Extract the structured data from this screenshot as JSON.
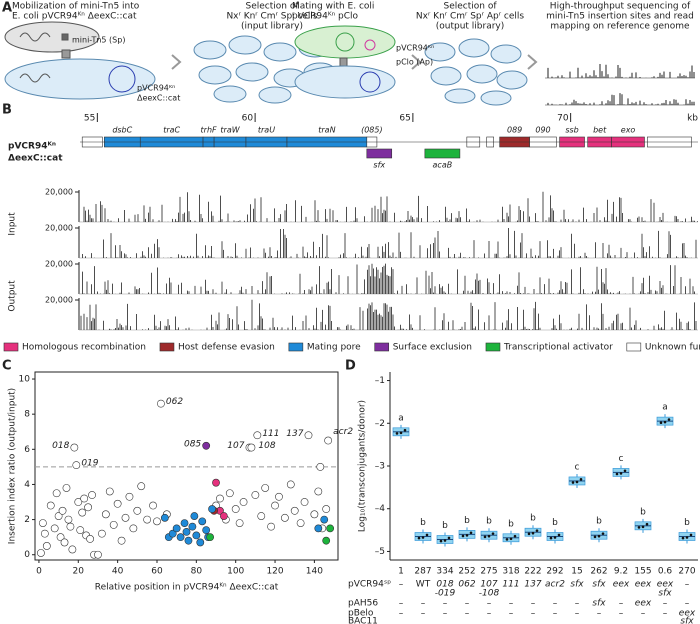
{
  "panel_a": {
    "label": "A",
    "steps": [
      [
        "Mobilization of mini-Tn5 into",
        "E. coli pVCR94ᴷⁿ ΔeexC::cat"
      ],
      [
        "Selection of",
        "Nxʳ Knʳ Cmʳ Spʳ cells",
        "(input library)"
      ],
      [
        "Mating with E. coli",
        "pVCR94ᴷⁿ pClo"
      ],
      [
        "Selection of",
        "Nxʳ Knʳ Cmʳ Spʳ Apʳ cells",
        "(output library)"
      ],
      [
        "High-throughput sequencing of",
        "mini-Tn5 insertion sites and read",
        "mapping on reference genome"
      ]
    ],
    "cell_labels": [
      "mini-Tn5 (Sp)",
      "pVCR94ᴷⁿ",
      "ΔeexC::cat",
      "pVCR94ᴷⁿ",
      "pClo (Ap)"
    ]
  },
  "panel_b": {
    "label": "B",
    "construct": [
      "pVCR94ᴷⁿ",
      "ΔeexC::cat"
    ],
    "kblim": [
      54.45,
      74.1
    ],
    "kb_ticks": [
      55,
      60,
      65,
      70
    ],
    "kb_unit": "kb",
    "genes": [
      {
        "name": null,
        "start": 54.52,
        "end": 55.16,
        "category": "Unknown function"
      },
      {
        "name": "dsbC",
        "start": 55.22,
        "end": 56.36,
        "category": "Mating pore"
      },
      {
        "name": "traC",
        "start": 56.36,
        "end": 58.35,
        "category": "Mating pore"
      },
      {
        "name": "trhF",
        "start": 58.35,
        "end": 58.7,
        "category": "Mating pore"
      },
      {
        "name": "traW",
        "start": 58.7,
        "end": 59.71,
        "category": "Mating pore"
      },
      {
        "name": "traU",
        "start": 59.71,
        "end": 61.01,
        "category": "Mating pore"
      },
      {
        "name": "traN",
        "start": 61.01,
        "end": 63.54,
        "category": "Mating pore"
      },
      {
        "name": "(085)",
        "start": 63.54,
        "end": 63.86,
        "category": "Unknown function"
      },
      {
        "name": "sfx",
        "start": 63.54,
        "end": 64.33,
        "category": "Surface exclusion"
      },
      {
        "name": "acaB",
        "start": 65.38,
        "end": 66.49,
        "category": "Transcriptional activator"
      },
      {
        "name": null,
        "start": 66.71,
        "end": 67.12,
        "category": "Unknown function"
      },
      {
        "name": null,
        "start": 67.34,
        "end": 67.56,
        "category": "Unknown function"
      },
      {
        "name": "089",
        "start": 67.75,
        "end": 68.7,
        "category": "Host defense evasion"
      },
      {
        "name": "090",
        "start": 68.7,
        "end": 69.55,
        "category": "Unknown function"
      },
      {
        "name": "ssb",
        "start": 69.65,
        "end": 70.44,
        "category": "Homologous recombination"
      },
      {
        "name": "bet",
        "start": 70.54,
        "end": 71.3,
        "category": "Homologous recombination"
      },
      {
        "name": "exo",
        "start": 71.3,
        "end": 72.34,
        "category": "Homologous recombination"
      },
      {
        "name": null,
        "start": 72.43,
        "end": 73.83,
        "category": "Unknown function"
      }
    ],
    "track_groups": [
      "Input",
      "Output"
    ],
    "track_tick": {
      "value": 20000,
      "label": "20,000"
    }
  },
  "chart_data": [
    {
      "type": "scatter",
      "label": "C",
      "xlabel": "Relative position in pVCR94ᴷⁿ ΔeexC::cat",
      "ylabel": "Insertion index ratio (output/input)",
      "xlim": [
        -2,
        152
      ],
      "ylim": [
        -0.3,
        10.4
      ],
      "xticks": [
        0,
        20,
        40,
        60,
        80,
        100,
        120,
        140
      ],
      "yticks": [
        0,
        2,
        4,
        6,
        8,
        10
      ],
      "threshold": 5,
      "series": [
        {
          "name": "Homologous recombination",
          "color": "#e5317d",
          "x": [
            90,
            92,
            94
          ],
          "values": [
            4.1,
            2.5,
            2.2
          ]
        },
        {
          "name": "Host defense evasion",
          "color": "#9e2a2b",
          "x": [
            89
          ],
          "values": [
            2.5
          ]
        },
        {
          "name": "Mating pore",
          "color": "#1f8ad8",
          "x": [
            64,
            66,
            68,
            70,
            72,
            74,
            75,
            76,
            78,
            79,
            80,
            82,
            83,
            85,
            86,
            88,
            142,
            145
          ],
          "values": [
            2.1,
            1.0,
            1.2,
            1.5,
            1.0,
            1.8,
            1.3,
            0.8,
            1.6,
            2.2,
            1.1,
            0.7,
            1.9,
            1.4,
            1.0,
            2.6,
            1.5,
            2.0
          ]
        },
        {
          "name": "Surface exclusion",
          "color": "#7e2e9e",
          "x": [
            85
          ],
          "values": [
            6.2
          ]
        },
        {
          "name": "Transcriptional activator",
          "color": "#1db33c",
          "x": [
            87,
            146,
            148
          ],
          "values": [
            1.0,
            0.8,
            1.5
          ]
        },
        {
          "name": "Unknown function",
          "color": "#ffffff",
          "x": [
            1,
            2,
            3,
            4,
            6,
            8,
            9,
            10,
            11,
            12,
            13,
            14,
            15,
            16,
            17,
            18,
            19,
            20,
            21,
            22,
            23,
            24,
            25,
            26,
            27,
            28,
            30,
            32,
            34,
            36,
            38,
            40,
            42,
            44,
            46,
            48,
            50,
            52,
            55,
            58,
            60,
            62,
            65,
            90,
            92,
            95,
            97,
            100,
            102,
            104,
            107,
            108,
            110,
            111,
            113,
            115,
            118,
            120,
            122,
            125,
            128,
            130,
            133,
            135,
            137,
            140,
            142,
            143,
            144,
            146,
            147
          ],
          "values": [
            0.1,
            1.8,
            1.2,
            0.5,
            2.8,
            1.5,
            3.5,
            2.2,
            1.0,
            2.5,
            0.7,
            3.8,
            2.0,
            1.6,
            0.3,
            6.1,
            5.1,
            3.0,
            1.4,
            2.4,
            3.2,
            1.1,
            2.7,
            0.9,
            3.4,
            0.0,
            0.0,
            1.2,
            2.3,
            3.6,
            1.7,
            2.9,
            0.8,
            2.1,
            3.3,
            1.5,
            2.5,
            3.9,
            2.0,
            2.8,
            1.9,
            8.6,
            2.3,
            2.8,
            3.2,
            2.0,
            3.5,
            2.6,
            1.8,
            3.0,
            6.1,
            6.1,
            3.4,
            6.8,
            2.2,
            3.8,
            1.6,
            2.8,
            3.3,
            2.1,
            4.0,
            2.5,
            1.8,
            3.0,
            6.8,
            2.3,
            3.6,
            5.0,
            1.5,
            2.6,
            6.5
          ]
        }
      ],
      "annotations": [
        {
          "text": "062",
          "x": 62,
          "y": 8.6
        },
        {
          "text": "018",
          "x": 18,
          "y": 6.1
        },
        {
          "text": "019",
          "x": 19,
          "y": 5.1
        },
        {
          "text": "085",
          "x": 85,
          "y": 6.2
        },
        {
          "text": "107",
          "x": 107,
          "y": 6.1
        },
        {
          "text": "108",
          "x": 108,
          "y": 6.1
        },
        {
          "text": "111",
          "x": 111,
          "y": 6.8
        },
        {
          "text": "137",
          "x": 137,
          "y": 6.8
        },
        {
          "text": "acr2",
          "x": 147,
          "y": 6.5
        }
      ]
    },
    {
      "type": "box",
      "label": "D",
      "ylabel": "Log₁₀(transconjugants/donor)",
      "ylim": [
        -5.2,
        -0.8
      ],
      "yticks": [
        {
          "value": -1,
          "label": "–1"
        },
        {
          "value": -2,
          "label": "–2"
        },
        {
          "value": -3,
          "label": "–3"
        },
        {
          "value": -4,
          "label": "–4"
        },
        {
          "value": -5,
          "label": "–5"
        }
      ],
      "color": "#8fd3f0",
      "categories": [
        [
          "–"
        ],
        [
          "WT"
        ],
        [
          "018",
          "-019"
        ],
        [
          "062"
        ],
        [
          "107",
          "-108"
        ],
        [
          "111"
        ],
        [
          "137"
        ],
        [
          "acr2"
        ],
        [
          "sfx"
        ],
        [
          "sfx"
        ],
        [
          "eex"
        ],
        [
          "eex"
        ],
        [
          "eex",
          "sfx"
        ],
        [
          "–"
        ]
      ],
      "values": [
        -2.2,
        -4.65,
        -4.72,
        -4.6,
        -4.62,
        -4.68,
        -4.55,
        -4.65,
        -3.35,
        -4.62,
        -3.15,
        -4.4,
        -1.95,
        -4.65
      ],
      "group_letters": [
        "a",
        "b",
        "b",
        "b",
        "b",
        "b",
        "b",
        "b",
        "c",
        "b",
        "c",
        "b",
        "a",
        "b"
      ],
      "ratios": [
        1,
        287,
        334,
        252,
        275,
        318,
        222,
        292,
        15,
        262,
        9.2,
        155,
        0.6,
        270
      ],
      "row_labels": [
        [
          "pVCR94ˢᵖ"
        ],
        [
          "pAH56"
        ],
        [
          "pBelo",
          "BAC11"
        ]
      ],
      "rows": [
        [
          [
            "–"
          ],
          [
            "–"
          ],
          [
            "–"
          ],
          [
            "–"
          ],
          [
            "–"
          ],
          [
            "–"
          ],
          [
            "–"
          ],
          [
            "–"
          ],
          [
            "–"
          ],
          [
            "sfx"
          ],
          [
            "–"
          ],
          [
            "eex"
          ],
          [
            "–"
          ],
          [
            "–"
          ]
        ],
        [
          [
            "–"
          ],
          [
            "–"
          ],
          [
            "–"
          ],
          [
            "–"
          ],
          [
            "–"
          ],
          [
            "–"
          ],
          [
            "–"
          ],
          [
            "–"
          ],
          [
            "–"
          ],
          [
            "–"
          ],
          [
            "–"
          ],
          [
            "–"
          ],
          [
            "–"
          ],
          [
            "eex",
            "sfx"
          ]
        ]
      ]
    }
  ]
}
